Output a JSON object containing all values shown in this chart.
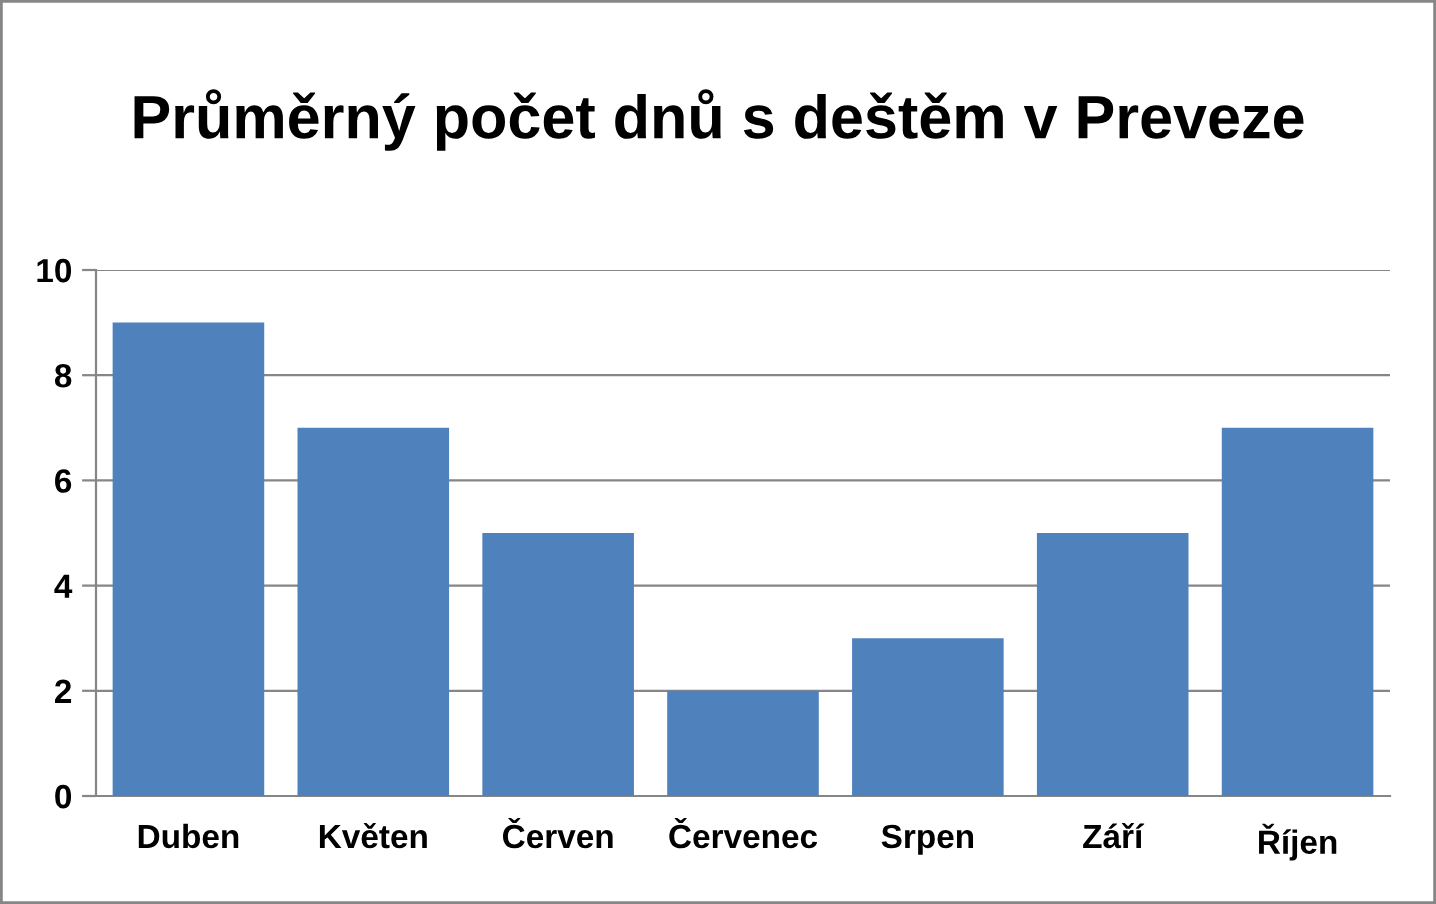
{
  "chart_data": {
    "type": "bar",
    "title": "Průměrný počet dnů s deštěm v Preveze",
    "categories": [
      "Duben",
      "Květen",
      "Červen",
      "Červenec",
      "Srpen",
      "Září",
      "Říjen"
    ],
    "values": [
      9,
      7,
      5,
      2,
      3,
      5,
      7
    ],
    "color": "#4f81bd",
    "ylim": [
      0,
      10
    ],
    "yticks": [
      0,
      2,
      4,
      6,
      8,
      10
    ],
    "grid": "y",
    "legend": false
  }
}
